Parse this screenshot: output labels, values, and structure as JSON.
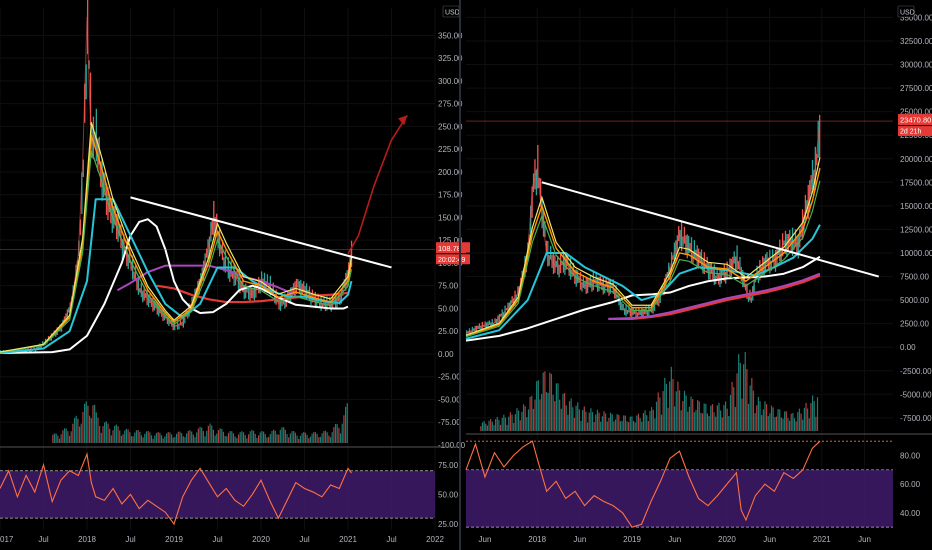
{
  "theme": {
    "background": "#000000",
    "axis_text": "#b2b5be",
    "grid": "#0f0f0f",
    "divider": "#2a2e39",
    "candle_up": "#26a69a",
    "candle_down": "#ef5350",
    "ema_yellow": "#f5e663",
    "ema_orange": "#ff9800",
    "ema_green": "#4caf50",
    "ema_cyan": "#26c6da",
    "ma_white": "#ffffff",
    "ma_magenta": "#ab47bc",
    "ma_red": "#e53935",
    "trendline": "#ffffff",
    "projection_arrow": "#b71c1c",
    "rsi_line": "#ff7043",
    "rsi_band": "#3f1b6b",
    "price_label_bg": "#e53935",
    "currency_badge_bg": "#000000"
  },
  "chart_data": [
    {
      "panel": "left",
      "type": "line",
      "currency_label": "USD",
      "last_price_label": "108.78",
      "countdown_label": "20:02:49",
      "x_tick_labels": [
        "017",
        "Jul",
        "2018",
        "Jul",
        "2019",
        "Jul",
        "2020",
        "Jul",
        "2021",
        "Jul",
        "2022"
      ],
      "x_tick_t": [
        2017.0,
        2017.5,
        2018.0,
        2018.5,
        2019.0,
        2019.5,
        2020.0,
        2020.5,
        2021.0,
        2021.5,
        2022.0
      ],
      "y_tick_labels": [
        "350.00",
        "325.00",
        "300.00",
        "275.00",
        "250.00",
        "225.00",
        "200.00",
        "175.00",
        "150.00",
        "125.00",
        "100.00",
        "75.00",
        "50.00",
        "25.00",
        "0.00",
        "-25.00",
        "-50.00",
        "-75.00",
        "-100.00"
      ],
      "y_tick_values": [
        350,
        325,
        300,
        275,
        250,
        225,
        200,
        175,
        150,
        125,
        100,
        75,
        50,
        25,
        0,
        -25,
        -50,
        -75,
        -100
      ],
      "ylim": [
        -100,
        380
      ],
      "xlim": [
        2017.0,
        2022.0
      ],
      "price_series": {
        "name": "",
        "x": [
          2017.0,
          2017.2,
          2017.4,
          2017.5,
          2017.6,
          2017.7,
          2017.8,
          2017.85,
          2017.9,
          2017.95,
          2018.0,
          2018.03,
          2018.06,
          2018.1,
          2018.15,
          2018.2,
          2018.25,
          2018.3,
          2018.35,
          2018.4,
          2018.45,
          2018.5,
          2018.55,
          2018.6,
          2018.7,
          2018.8,
          2018.9,
          2019.0,
          2019.1,
          2019.2,
          2019.3,
          2019.4,
          2019.45,
          2019.5,
          2019.55,
          2019.6,
          2019.7,
          2019.8,
          2019.9,
          2020.0,
          2020.1,
          2020.2,
          2020.3,
          2020.4,
          2020.5,
          2020.6,
          2020.7,
          2020.8,
          2020.9,
          2021.0,
          2021.04
        ],
        "values": [
          2,
          3,
          5,
          12,
          20,
          30,
          50,
          75,
          110,
          210,
          370,
          280,
          230,
          240,
          200,
          180,
          160,
          150,
          140,
          120,
          110,
          100,
          85,
          70,
          60,
          50,
          40,
          30,
          35,
          55,
          80,
          120,
          150,
          130,
          110,
          95,
          85,
          70,
          65,
          80,
          75,
          55,
          60,
          75,
          70,
          60,
          55,
          55,
          60,
          90,
          115
        ]
      },
      "ema_fast": {
        "name": "",
        "x": [
          2017.0,
          2017.5,
          2017.8,
          2017.95,
          2018.05,
          2018.15,
          2018.3,
          2018.5,
          2018.7,
          2018.9,
          2019.0,
          2019.2,
          2019.4,
          2019.5,
          2019.6,
          2019.8,
          2020.0,
          2020.2,
          2020.4,
          2020.6,
          2020.8,
          2021.0,
          2021.04
        ],
        "values": [
          2,
          10,
          40,
          120,
          240,
          210,
          160,
          110,
          70,
          45,
          35,
          50,
          100,
          135,
          115,
          80,
          75,
          62,
          68,
          62,
          57,
          80,
          100
        ]
      },
      "ema_slow_cyan": {
        "name": "",
        "x": [
          2017.0,
          2017.5,
          2017.8,
          2018.0,
          2018.1,
          2018.3,
          2018.5,
          2018.7,
          2018.9,
          2019.1,
          2019.3,
          2019.5,
          2019.7,
          2019.9,
          2020.1,
          2020.3,
          2020.5,
          2020.7,
          2020.9,
          2021.0,
          2021.04
        ],
        "values": [
          1,
          6,
          25,
          80,
          170,
          170,
          130,
          90,
          55,
          40,
          55,
          95,
          95,
          80,
          70,
          63,
          63,
          58,
          56,
          65,
          80
        ]
      },
      "ma_white": {
        "name": "",
        "x": [
          2017.0,
          2017.6,
          2017.8,
          2018.0,
          2018.2,
          2018.4,
          2018.5,
          2018.6,
          2018.7,
          2018.8,
          2018.9,
          2019.0,
          2019.1,
          2019.2,
          2019.3,
          2019.45,
          2019.6,
          2019.75,
          2019.9,
          2020.0,
          2020.2,
          2020.4,
          2020.6,
          2020.8,
          2020.95,
          2021.0
        ],
        "values": [
          1,
          2,
          5,
          20,
          55,
          100,
          130,
          145,
          148,
          140,
          115,
          80,
          60,
          50,
          45,
          46,
          55,
          70,
          75,
          72,
          62,
          54,
          52,
          50,
          50,
          52
        ]
      },
      "ma_magenta": {
        "name": "",
        "x": [
          2018.35,
          2018.5,
          2018.7,
          2018.9,
          2019.0,
          2019.2,
          2019.4,
          2019.6,
          2019.8,
          2020.0,
          2020.2,
          2020.4
        ],
        "values": [
          70,
          78,
          90,
          97,
          97,
          97,
          97,
          92,
          85,
          80,
          73,
          65
        ]
      },
      "ma_red": {
        "name": "",
        "x": [
          2018.8,
          2019.0,
          2019.2,
          2019.4,
          2019.6,
          2019.8,
          2020.0,
          2020.2,
          2020.4,
          2020.6,
          2020.8,
          2021.0
        ],
        "values": [
          75,
          72,
          65,
          60,
          57,
          57,
          58,
          60,
          62,
          64,
          65,
          67
        ]
      },
      "trendline": {
        "x": [
          2018.5,
          2021.5
        ],
        "values": [
          172,
          95
        ]
      },
      "projection_arrow": {
        "x": [
          2021.0,
          2021.12,
          2021.3,
          2021.5,
          2021.68
        ],
        "values": [
          110,
          130,
          185,
          235,
          262
        ]
      },
      "volume": {
        "x": [
          2017.6,
          2017.8,
          2017.9,
          2018.0,
          2018.05,
          2018.1,
          2018.2,
          2018.3,
          2018.4,
          2018.5,
          2018.6,
          2018.8,
          2019.0,
          2019.2,
          2019.4,
          2019.5,
          2019.7,
          2019.9,
          2020.1,
          2020.2,
          2020.4,
          2020.6,
          2020.8,
          2020.95,
          2021.0
        ],
        "values": [
          4,
          8,
          15,
          20,
          25,
          14,
          10,
          9,
          7,
          6,
          6,
          5,
          5,
          6,
          9,
          7,
          5,
          6,
          5,
          8,
          5,
          5,
          6,
          14,
          22
        ]
      },
      "rsi": {
        "y_tick_labels": [
          "75.00",
          "50.00",
          "25.00"
        ],
        "y_tick_values": [
          75,
          50,
          25
        ],
        "ylim": [
          20,
          90
        ],
        "upper_band": 70,
        "lower_band": 30,
        "x": [
          2017.0,
          2017.1,
          2017.2,
          2017.3,
          2017.4,
          2017.5,
          2017.6,
          2017.7,
          2017.8,
          2017.9,
          2018.0,
          2018.05,
          2018.1,
          2018.2,
          2018.3,
          2018.4,
          2018.5,
          2018.6,
          2018.7,
          2018.8,
          2018.9,
          2019.0,
          2019.1,
          2019.2,
          2019.3,
          2019.4,
          2019.5,
          2019.6,
          2019.7,
          2019.8,
          2019.9,
          2020.0,
          2020.1,
          2020.2,
          2020.3,
          2020.4,
          2020.5,
          2020.6,
          2020.7,
          2020.8,
          2020.9,
          2021.0,
          2021.04
        ],
        "values": [
          55,
          70,
          48,
          66,
          52,
          75,
          44,
          62,
          70,
          66,
          84,
          60,
          48,
          45,
          55,
          42,
          50,
          38,
          45,
          40,
          35,
          25,
          48,
          62,
          72,
          60,
          48,
          55,
          45,
          40,
          50,
          62,
          45,
          30,
          45,
          60,
          55,
          52,
          48,
          58,
          55,
          72,
          68
        ]
      }
    },
    {
      "panel": "right",
      "type": "line",
      "currency_label": "USD",
      "last_price_label": "23470.80",
      "countdown_label": "2d 21h",
      "x_tick_labels": [
        "Jun",
        "2018",
        "Jun",
        "2019",
        "Jun",
        "2020",
        "Jun",
        "2021",
        "Jun"
      ],
      "x_tick_t": [
        2017.45,
        2018.0,
        2018.45,
        2019.0,
        2019.45,
        2020.0,
        2020.45,
        2021.0,
        2021.45
      ],
      "y_tick_labels": [
        "35000.00",
        "32500.00",
        "30000.00",
        "27500.00",
        "25000.00",
        "22500.00",
        "20000.00",
        "17500.00",
        "15000.00",
        "12500.00",
        "10000.00",
        "7500.00",
        "5000.00",
        "2500.00",
        "0.00",
        "-2500.00",
        "-5000.00",
        "-7500.00"
      ],
      "y_tick_values": [
        35000,
        32500,
        30000,
        27500,
        25000,
        22500,
        20000,
        17500,
        15000,
        12500,
        10000,
        7500,
        5000,
        2500,
        0,
        -2500,
        -5000,
        -7500
      ],
      "ylim": [
        -9000,
        36000
      ],
      "xlim": [
        2017.25,
        2021.75
      ],
      "price_series": {
        "name": "",
        "x": [
          2017.25,
          2017.4,
          2017.55,
          2017.7,
          2017.8,
          2017.9,
          2017.95,
          2018.0,
          2018.05,
          2018.1,
          2018.2,
          2018.3,
          2018.4,
          2018.5,
          2018.6,
          2018.7,
          2018.8,
          2018.9,
          2019.0,
          2019.1,
          2019.2,
          2019.3,
          2019.4,
          2019.5,
          2019.6,
          2019.7,
          2019.8,
          2019.9,
          2020.0,
          2020.1,
          2020.2,
          2020.25,
          2020.3,
          2020.4,
          2020.5,
          2020.6,
          2020.7,
          2020.75,
          2020.8,
          2020.85,
          2020.9,
          2020.93,
          2020.96,
          2020.98
        ],
        "values": [
          1500,
          2200,
          2600,
          4300,
          5800,
          10000,
          17000,
          19000,
          14000,
          10000,
          8500,
          9000,
          7500,
          6500,
          7000,
          6500,
          6300,
          4000,
          3700,
          3600,
          4000,
          5500,
          8500,
          12000,
          10500,
          9500,
          8300,
          7300,
          8000,
          9500,
          6000,
          5000,
          7500,
          9000,
          9200,
          11000,
          11200,
          10800,
          13500,
          15500,
          18000,
          19000,
          22000,
          24000
        ]
      },
      "ema_fast": {
        "name": "",
        "x": [
          2017.25,
          2017.6,
          2017.8,
          2017.95,
          2018.05,
          2018.2,
          2018.4,
          2018.6,
          2018.8,
          2019.0,
          2019.2,
          2019.4,
          2019.5,
          2019.6,
          2019.8,
          2020.0,
          2020.2,
          2020.4,
          2020.6,
          2020.8,
          2020.9,
          2020.98
        ],
        "values": [
          1200,
          2400,
          5000,
          12000,
          15000,
          10500,
          8000,
          7000,
          6300,
          4200,
          4200,
          7500,
          10000,
          9800,
          8500,
          8300,
          7000,
          8500,
          10000,
          12500,
          15500,
          19000
        ]
      },
      "ema_slow_cyan": {
        "name": "",
        "x": [
          2017.25,
          2017.6,
          2017.9,
          2018.1,
          2018.3,
          2018.5,
          2018.7,
          2018.9,
          2019.1,
          2019.3,
          2019.5,
          2019.7,
          2019.9,
          2020.1,
          2020.3,
          2020.5,
          2020.7,
          2020.9,
          2020.98
        ],
        "values": [
          900,
          1800,
          5000,
          10000,
          10000,
          8500,
          7500,
          6500,
          5000,
          5600,
          7800,
          8500,
          8300,
          8000,
          7600,
          8500,
          9500,
          11500,
          13000
        ]
      },
      "ma_white": {
        "name": "",
        "x": [
          2017.25,
          2017.6,
          2017.9,
          2018.2,
          2018.5,
          2018.8,
          2019.0,
          2019.2,
          2019.4,
          2019.6,
          2019.8,
          2020.0,
          2020.2,
          2020.4,
          2020.6,
          2020.8,
          2020.98
        ],
        "values": [
          700,
          1200,
          2000,
          3000,
          4000,
          4800,
          5500,
          5600,
          5800,
          6500,
          7000,
          7300,
          7400,
          7500,
          7800,
          8500,
          9600
        ]
      },
      "ma_magenta": {
        "name": "",
        "x": [
          2018.75,
          2019.0,
          2019.2,
          2019.4,
          2019.6,
          2019.8,
          2020.0,
          2020.2,
          2020.4,
          2020.6,
          2020.8,
          2020.98
        ],
        "values": [
          3000,
          3100,
          3300,
          3700,
          4200,
          4700,
          5200,
          5600,
          6000,
          6500,
          7100,
          7800
        ]
      },
      "ma_red": {
        "name": "",
        "x": [
          2018.75,
          2019.0,
          2019.2,
          2019.4,
          2019.6,
          2019.8,
          2020.0,
          2020.2,
          2020.4,
          2020.6,
          2020.8,
          2020.98
        ],
        "values": [
          3000,
          3000,
          3200,
          3500,
          4000,
          4500,
          5000,
          5400,
          5800,
          6300,
          6900,
          7600
        ]
      },
      "trendline": {
        "x": [
          2018.05,
          2021.6
        ],
        "values": [
          17500,
          7500
        ]
      },
      "volume": {
        "x": [
          2017.4,
          2017.7,
          2017.9,
          2018.0,
          2018.1,
          2018.3,
          2018.5,
          2018.8,
          2019.0,
          2019.2,
          2019.4,
          2019.5,
          2019.6,
          2019.8,
          2020.0,
          2020.15,
          2020.2,
          2020.3,
          2020.5,
          2020.7,
          2020.85,
          2020.95
        ],
        "values": [
          3,
          6,
          10,
          18,
          22,
          12,
          8,
          6,
          5,
          8,
          22,
          15,
          12,
          9,
          10,
          30,
          25,
          12,
          8,
          6,
          10,
          14
        ]
      },
      "rsi": {
        "y_tick_labels": [
          "80.00",
          "60.00",
          "40.00"
        ],
        "y_tick_values": [
          80,
          60,
          40
        ],
        "ylim": [
          28,
          95
        ],
        "upper_band": 90,
        "upper_band_inner": 70,
        "lower_band": 30,
        "x": [
          2017.25,
          2017.35,
          2017.45,
          2017.55,
          2017.65,
          2017.75,
          2017.85,
          2017.95,
          2018.0,
          2018.1,
          2018.2,
          2018.3,
          2018.4,
          2018.5,
          2018.6,
          2018.7,
          2018.8,
          2018.9,
          2019.0,
          2019.1,
          2019.2,
          2019.3,
          2019.4,
          2019.5,
          2019.6,
          2019.7,
          2019.8,
          2019.9,
          2020.0,
          2020.1,
          2020.15,
          2020.2,
          2020.3,
          2020.4,
          2020.5,
          2020.6,
          2020.7,
          2020.8,
          2020.9,
          2020.98
        ],
        "values": [
          70,
          88,
          65,
          82,
          72,
          80,
          86,
          90,
          78,
          55,
          62,
          50,
          55,
          45,
          52,
          48,
          45,
          40,
          30,
          32,
          48,
          62,
          78,
          83,
          65,
          50,
          45,
          52,
          60,
          68,
          42,
          35,
          52,
          60,
          55,
          68,
          64,
          70,
          85,
          90
        ]
      }
    }
  ]
}
